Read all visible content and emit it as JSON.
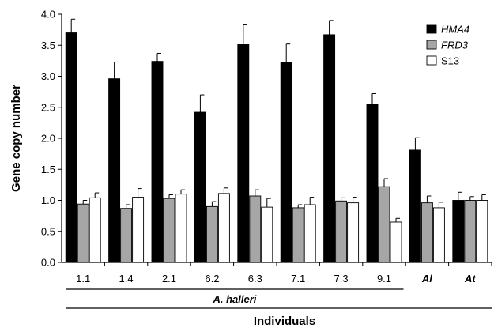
{
  "chart_data": {
    "type": "bar",
    "ylabel": "Gene copy number",
    "xlabel": "Individuals",
    "ylim": [
      0,
      4.0
    ],
    "yticks": [
      "0.0",
      "0.5",
      "1.0",
      "1.5",
      "2.0",
      "2.5",
      "3.0",
      "3.5",
      "4.0"
    ],
    "categories": [
      "1.1",
      "1.4",
      "2.1",
      "6.2",
      "6.3",
      "7.1",
      "7.3",
      "9.1",
      "Al",
      "At"
    ],
    "category_italic": [
      false,
      false,
      false,
      false,
      false,
      false,
      false,
      false,
      true,
      true
    ],
    "group_label": "A. halleri",
    "legend_position": "top-right",
    "series": [
      {
        "name": "HMA4",
        "italic": true,
        "color": "#000000",
        "values": [
          3.7,
          2.96,
          3.24,
          2.42,
          3.51,
          3.23,
          3.67,
          2.55,
          1.81,
          1.0
        ],
        "errors": [
          0.22,
          0.27,
          0.13,
          0.28,
          0.33,
          0.29,
          0.23,
          0.17,
          0.2,
          0.13
        ]
      },
      {
        "name": "FRD3",
        "italic": true,
        "color": "#a6a6a6",
        "values": [
          0.94,
          0.87,
          1.03,
          0.9,
          1.07,
          0.88,
          0.99,
          1.22,
          0.96,
          1.0
        ],
        "errors": [
          0.06,
          0.06,
          0.06,
          0.08,
          0.1,
          0.05,
          0.05,
          0.13,
          0.11,
          0.06
        ]
      },
      {
        "name": "S13",
        "italic": false,
        "color": "#ffffff",
        "values": [
          1.04,
          1.05,
          1.1,
          1.11,
          0.89,
          0.93,
          0.96,
          0.65,
          0.88,
          1.0
        ],
        "errors": [
          0.08,
          0.14,
          0.07,
          0.09,
          0.14,
          0.12,
          0.09,
          0.06,
          0.09,
          0.09
        ]
      }
    ]
  }
}
